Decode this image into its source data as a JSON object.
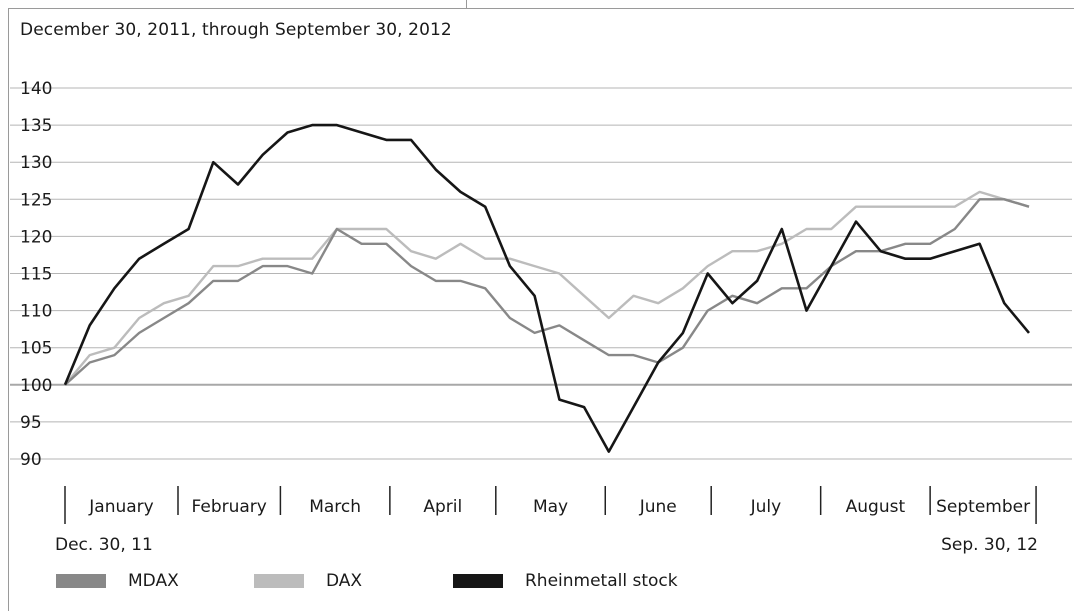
{
  "subtitle": "December 30, 2011, through September 30, 2012",
  "colors": {
    "mdax": "#888888",
    "dax": "#bcbcbc",
    "rheinmetall": "#161616",
    "grid": "#b5b5b5",
    "baseline": "#a8a8a8"
  },
  "chart_data": {
    "type": "line",
    "title": "",
    "subtitle": "December 30, 2011, through September 30, 2012",
    "xlabel": "",
    "ylabel": "",
    "ylim": [
      90,
      140
    ],
    "yticks": [
      90,
      95,
      100,
      105,
      110,
      115,
      120,
      125,
      130,
      135,
      140
    ],
    "x_start_label": "Dec. 30, 11",
    "x_end_label": "Sep. 30, 12",
    "months": [
      "January",
      "February",
      "March",
      "April",
      "May",
      "June",
      "July",
      "August",
      "September"
    ],
    "grid": true,
    "legend_position": "bottom",
    "x_dates": [
      "2011-12-30",
      "2012-01-06",
      "2012-01-13",
      "2012-01-20",
      "2012-01-27",
      "2012-02-03",
      "2012-02-10",
      "2012-02-17",
      "2012-02-24",
      "2012-03-02",
      "2012-03-09",
      "2012-03-16",
      "2012-03-23",
      "2012-03-30",
      "2012-04-06",
      "2012-04-13",
      "2012-04-20",
      "2012-04-27",
      "2012-05-04",
      "2012-05-11",
      "2012-05-18",
      "2012-05-25",
      "2012-06-01",
      "2012-06-08",
      "2012-06-15",
      "2012-06-22",
      "2012-06-29",
      "2012-07-06",
      "2012-07-13",
      "2012-07-20",
      "2012-07-27",
      "2012-08-03",
      "2012-08-10",
      "2012-08-17",
      "2012-08-24",
      "2012-08-31",
      "2012-09-07",
      "2012-09-14",
      "2012-09-21",
      "2012-09-28"
    ],
    "series": [
      {
        "name": "MDAX",
        "color": "#888888",
        "values": [
          100,
          103,
          104,
          107,
          109,
          111,
          114,
          114,
          116,
          116,
          115,
          121,
          119,
          119,
          116,
          114,
          114,
          113,
          109,
          107,
          108,
          106,
          104,
          104,
          103,
          105,
          110,
          112,
          111,
          113,
          113,
          116,
          118,
          118,
          119,
          119,
          121,
          125,
          125,
          124
        ]
      },
      {
        "name": "DAX",
        "color": "#bcbcbc",
        "values": [
          100,
          104,
          105,
          109,
          111,
          112,
          116,
          116,
          117,
          117,
          117,
          121,
          121,
          121,
          118,
          117,
          119,
          117,
          117,
          116,
          115,
          112,
          109,
          112,
          111,
          113,
          116,
          118,
          118,
          119,
          121,
          121,
          124,
          124,
          124,
          124,
          124,
          126,
          125,
          124
        ]
      },
      {
        "name": "Rheinmetall stock",
        "color": "#161616",
        "values": [
          100,
          108,
          113,
          117,
          119,
          121,
          130,
          127,
          131,
          134,
          135,
          135,
          134,
          133,
          133,
          129,
          126,
          124,
          116,
          112,
          98,
          97,
          91,
          97,
          103,
          107,
          115,
          111,
          114,
          121,
          110,
          116,
          122,
          118,
          117,
          117,
          118,
          119,
          111,
          107
        ]
      }
    ]
  }
}
